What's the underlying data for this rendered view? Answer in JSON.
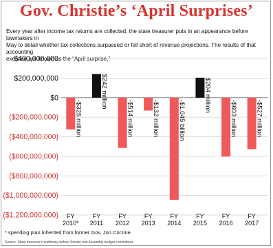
{
  "header": {
    "title": "Gov. Christie’s ‘April Surprises’",
    "subtitle": "Every year after income tax returns are collected, the state treasurer puts in an appearance before lawmakers in\nMay to detail whether tax collections surpassed or fell short of revenue projections. The results of that accounting\nexercise are known as the “April surprise.”"
  },
  "footer": {
    "footnote": "* spending plan inherited from former Gov. Jon Corzine",
    "source": "Source: State treasurer's testimony before Senate and Assembly budget committees"
  },
  "colors": {
    "negative": "#f0595a",
    "positive": "#111111",
    "title": "#d8322f",
    "grid": "#cfcfcf"
  },
  "chart_data": {
    "type": "bar",
    "categories": [
      "FY 2010*",
      "FY 2011",
      "FY 2012",
      "FY 2013",
      "FY 2014",
      "FY 2015",
      "FY 2016",
      "FY 2017"
    ],
    "category_lines": [
      [
        "FY",
        "2010*"
      ],
      [
        "FY",
        "2011"
      ],
      [
        "FY",
        "2012"
      ],
      [
        "FY",
        "2013"
      ],
      [
        "FY",
        "2014"
      ],
      [
        "FY",
        "2015"
      ],
      [
        "FY",
        "2016"
      ],
      [
        "FY",
        "2017"
      ]
    ],
    "values": [
      -325000000,
      242000000,
      -514000000,
      -132000000,
      -1045000000,
      204000000,
      -603000000,
      -527000000
    ],
    "data_labels": [
      "-$325 million",
      "$242 million",
      "-$514 million",
      "-$132 million",
      "-$1,045 billion",
      "$204 million",
      "-$603 million",
      "-$527 million"
    ],
    "ylim": [
      -1200000000,
      400000000
    ],
    "yticks": [
      400000000,
      200000000,
      0,
      -200000000,
      -400000000,
      -600000000,
      -800000000,
      -1000000000,
      -1200000000
    ],
    "ytick_labels": [
      "$400,000,000",
      "$200,000,000",
      "$0",
      "($200,000,000)",
      "($400,000,000)",
      "($600,000,000)",
      "($800,000,000)",
      "($1,000,000,000)",
      "($1,200,000,000)"
    ],
    "grid": true
  }
}
